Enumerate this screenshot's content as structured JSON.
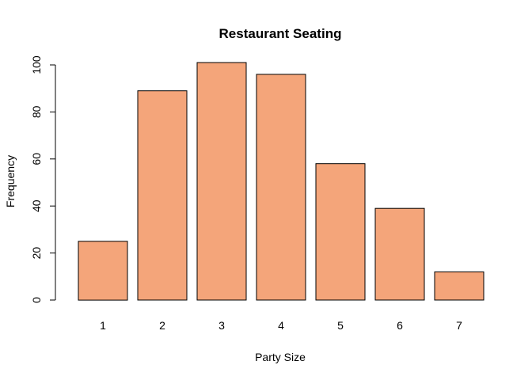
{
  "chart_data": {
    "type": "bar",
    "title": "Restaurant Seating",
    "xlabel": "Party Size",
    "ylabel": "Frequency",
    "categories": [
      "1",
      "2",
      "3",
      "4",
      "5",
      "6",
      "7"
    ],
    "values": [
      25,
      89,
      101,
      96,
      58,
      39,
      12
    ],
    "ylim": [
      0,
      100
    ],
    "yticks": [
      "0",
      "20",
      "40",
      "60",
      "80",
      "100"
    ],
    "bar_color": "#F4A57A",
    "grid": false,
    "legend": "none"
  }
}
